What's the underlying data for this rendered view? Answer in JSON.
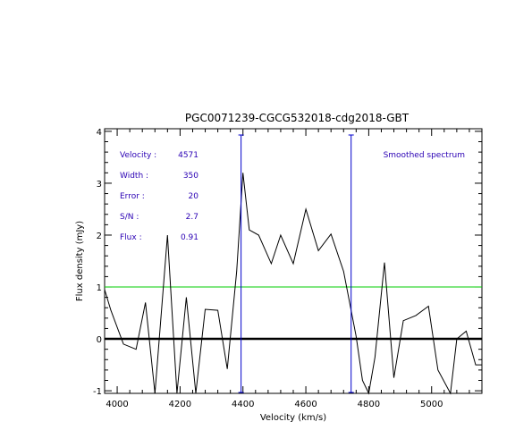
{
  "chart_data": {
    "type": "line",
    "title": "PGC0071239-CGCG532018-cdg2018-GBT",
    "xlabel": "Velocity (km/s)",
    "ylabel": "Flux density (mJy)",
    "xlim": [
      3960,
      5160
    ],
    "ylim": [
      -1.05,
      4.05
    ],
    "x_ticks": [
      4000,
      4200,
      4400,
      4600,
      4800,
      5000
    ],
    "y_ticks": [
      -1,
      0,
      1,
      2,
      3,
      4
    ],
    "series": [
      {
        "color": "#000000",
        "x": [
          3960,
          3980,
          4020,
          4060,
          4090,
          4120,
          4160,
          4190,
          4220,
          4250,
          4280,
          4320,
          4350,
          4380,
          4400,
          4420,
          4450,
          4490,
          4520,
          4560,
          4600,
          4640,
          4680,
          4720,
          4760,
          4780,
          4800,
          4820,
          4850,
          4880,
          4910,
          4950,
          4990,
          5020,
          5060,
          5080,
          5110,
          5140,
          5160
        ],
        "y": [
          0.95,
          0.55,
          -0.1,
          -0.2,
          0.7,
          -1.2,
          2.0,
          -1.2,
          0.8,
          -1.2,
          0.57,
          0.55,
          -0.58,
          1.3,
          3.2,
          2.1,
          2.0,
          1.45,
          2.0,
          1.45,
          2.5,
          1.7,
          2.02,
          1.3,
          0.05,
          -0.8,
          -1.15,
          -0.35,
          1.47,
          -0.75,
          0.35,
          0.45,
          0.63,
          -0.6,
          -1.2,
          0.0,
          0.15,
          -0.5,
          -0.5
        ]
      }
    ],
    "hlines": [
      {
        "y": 0,
        "color": "#000000",
        "width": "thick"
      },
      {
        "y": 1,
        "color": "#00cc00"
      }
    ],
    "vlines": [
      {
        "x": 4394,
        "color": "#0000cc"
      },
      {
        "x": 4744,
        "color": "#0000cc"
      }
    ],
    "grid": false,
    "legend": "top-right"
  },
  "info": {
    "velocity_label": "Velocity :",
    "velocity_value": "4571",
    "width_label": "Width :",
    "width_value": "350",
    "error_label": "Error :",
    "error_value": "20",
    "sn_label": "S/N :",
    "sn_value": "2.7",
    "flux_label": "Flux :",
    "flux_value": "0.91",
    "legend_text": "Smoothed spectrum",
    "text_color": "#2a00b4"
  }
}
